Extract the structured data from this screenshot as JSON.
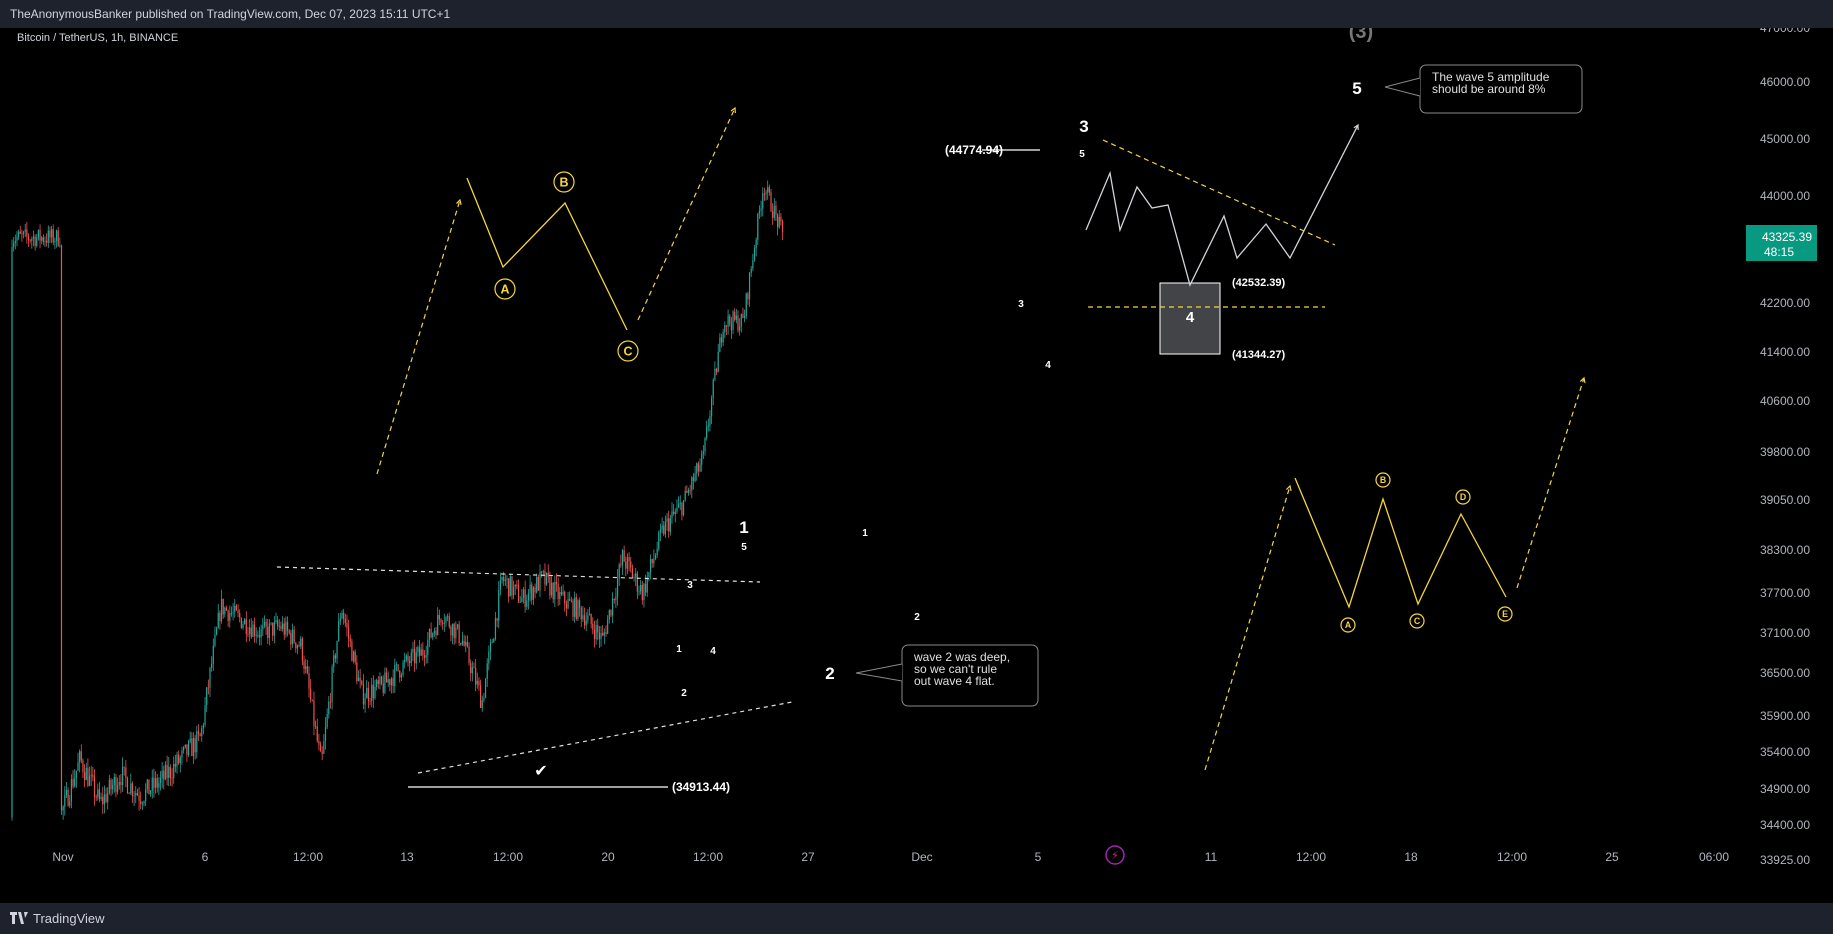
{
  "publish_info": "TheAnonymousBanker published on TradingView.com, Dec 07, 2023 15:11 UTC+1",
  "footer_brand": "TradingView",
  "chart_data": {
    "type": "candlestick",
    "symbol_title": "Bitcoin / TetherUS, 1h, BINANCE",
    "x_ticks": [
      "Nov",
      "6",
      "12:00",
      "13",
      "12:00",
      "20",
      "12:00",
      "27",
      "Dec",
      "5",
      "11",
      "12:00",
      "18",
      "12:00",
      "25",
      "06:00"
    ],
    "y_ticks": [
      "47000.00",
      "46000.00",
      "45000.00",
      "44000.00",
      "43325.39",
      "42200.00",
      "41400.00",
      "40600.00",
      "39800.00",
      "39050.00",
      "38300.00",
      "37700.00",
      "37100.00",
      "36500.00",
      "35900.00",
      "35400.00",
      "34900.00",
      "34400.00",
      "33925.00"
    ],
    "last_price": "43325.39",
    "countdown": "48:15",
    "price_path": [
      [
        "2023-11-01",
        34500
      ],
      [
        "2023-11-02",
        35300
      ],
      [
        "2023-11-03",
        34700
      ],
      [
        "2023-11-04",
        35100
      ],
      [
        "2023-11-05",
        34800
      ],
      [
        "2023-11-06",
        35000
      ],
      [
        "2023-11-08",
        35600
      ],
      [
        "2023-11-09",
        37500
      ],
      [
        "2023-11-10",
        37300
      ],
      [
        "2023-11-11",
        37100
      ],
      [
        "2023-11-12",
        37200
      ],
      [
        "2023-11-13",
        36900
      ],
      [
        "2023-11-14",
        35200
      ],
      [
        "2023-11-15",
        37500
      ],
      [
        "2023-11-16",
        36200
      ],
      [
        "2023-11-17",
        36300
      ],
      [
        "2023-11-18",
        36600
      ],
      [
        "2023-11-19",
        36800
      ],
      [
        "2023-11-20",
        37400
      ],
      [
        "2023-11-21",
        37000
      ],
      [
        "2023-11-22",
        36100
      ],
      [
        "2023-11-23",
        37900
      ],
      [
        "2023-11-24",
        37600
      ],
      [
        "2023-11-25",
        37900
      ],
      [
        "2023-11-26",
        37600
      ],
      [
        "2023-11-27",
        37400
      ],
      [
        "2023-11-28",
        37000
      ],
      [
        "2023-11-29",
        38200
      ],
      [
        "2023-11-30",
        37700
      ],
      [
        "2023-12-01",
        38600
      ],
      [
        "2023-12-02",
        39000
      ],
      [
        "2023-12-03",
        39700
      ],
      [
        "2023-12-04",
        41900
      ],
      [
        "2023-12-05",
        41900
      ],
      [
        "2023-12-06",
        44200
      ],
      [
        "2023-12-07",
        43300
      ]
    ],
    "levels": [
      {
        "label": "(34913.44)",
        "price": 34913.44
      },
      {
        "label": "(44774.94)",
        "price": 44774.94
      },
      {
        "label": "(42532.39)",
        "price": 42532.39
      },
      {
        "label": "(41344.27)",
        "price": 41344.27
      }
    ],
    "wave_labels": [
      "1",
      "2",
      "3",
      "4",
      "5",
      "(3)"
    ],
    "sub_wave_labels": [
      "1",
      "2",
      "3",
      "4",
      "5"
    ],
    "abc_labels": [
      "A",
      "B",
      "C"
    ],
    "abcde_labels": [
      "A",
      "B",
      "C",
      "D",
      "E"
    ],
    "annotations": [
      "wave 2 was deep,\nso we can't rule\nout wave 4 flat.",
      "The wave 5 amplitude\nshould be around 8%"
    ],
    "checkmark": "✔"
  },
  "colors": {
    "up": "#26a69a",
    "down": "#ef5350",
    "yellow": "#f5d63d",
    "price_badge": "#089981",
    "panel": "#1e222d",
    "grid_text": "#b2b5be"
  }
}
